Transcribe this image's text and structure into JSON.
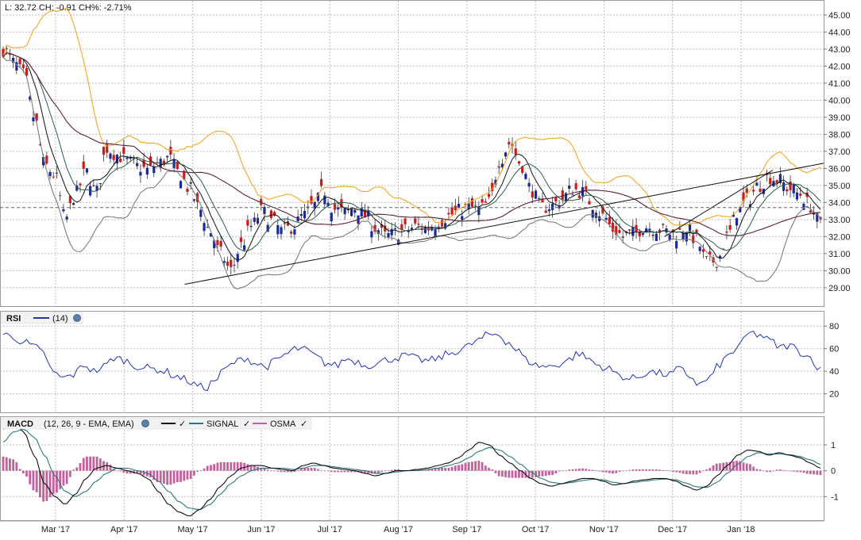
{
  "header": {
    "quote": "L: 32.72 CH: -0.91 CH%: -2.71%"
  },
  "rsi_legend": {
    "name": "RSI",
    "params": "(14)"
  },
  "macd_legend": {
    "name": "MACD",
    "params": "(12, 26, 9 - EMA, EMA)",
    "signal": "SIGNAL",
    "osma": "OSMA"
  },
  "colors": {
    "up": "#1a2a9a",
    "down": "#cc1b1b",
    "bollinger_upper": "#f5a623",
    "bollinger_lower": "#7d7d7d",
    "sma_fast": "#111111",
    "sma_mid": "#2f5d4a",
    "sma_slow": "#5a1f3c",
    "rsi": "#2233bb",
    "macd": "#111111",
    "signal": "#2a7a7a",
    "osma": "#c4609c"
  },
  "chart_data": [
    {
      "type": "candlestick",
      "title": "",
      "y_ticks": [
        "45.00",
        "44.00",
        "43.00",
        "42.00",
        "41.00",
        "40.00",
        "39.00",
        "38.00",
        "37.00",
        "36.00",
        "35.00",
        "34.00",
        "33.00",
        "32.00",
        "31.00",
        "30.00",
        "29.00"
      ],
      "ylim": [
        28.2,
        45.6
      ],
      "x_ticks": [
        "Mar '17",
        "Apr '17",
        "May '17",
        "Jun '17",
        "Jul '17",
        "Aug '17",
        "Sep '17",
        "Oct '17",
        "Nov '17",
        "Dec '17",
        "Jan '18"
      ],
      "last": 32.72,
      "last_line": 33.7,
      "trendlines": [
        {
          "from": [
            "May '17",
            29.2
          ],
          "to": [
            "Feb '18",
            36.3
          ]
        },
        {
          "from": [
            "Dec '17",
            32.0
          ],
          "to": [
            "Jan '18",
            35.9
          ]
        }
      ],
      "close_path": [
        43.0,
        42.2,
        41.5,
        39.0,
        36.2,
        35.6,
        33.0,
        34.5,
        35.8,
        34.6,
        37.2,
        36.8,
        36.4,
        36.1,
        35.9,
        36.3,
        36.6,
        35.7,
        34.8,
        33.6,
        32.3,
        31.0,
        30.0,
        31.5,
        32.6,
        33.5,
        32.9,
        32.3,
        32.6,
        33.2,
        33.8,
        34.7,
        33.6,
        33.4,
        33.7,
        33.2,
        32.5,
        32.0,
        32.2,
        32.4,
        32.6,
        32.5,
        32.8,
        33.2,
        33.5,
        33.7,
        33.6,
        34.0,
        36.5,
        37.5,
        36.3,
        34.8,
        33.7,
        33.8,
        34.2,
        34.8,
        34.6,
        33.9,
        33.2,
        32.4,
        32.0,
        32.2,
        32.6,
        32.5,
        32.3,
        32.1,
        32.5,
        31.8,
        30.5,
        30.6,
        32.0,
        33.5,
        34.2,
        35.0,
        35.5,
        35.3,
        34.8,
        34.5,
        33.8,
        32.7
      ]
    },
    {
      "type": "line",
      "name": "RSI (14)",
      "y_ticks": [
        80,
        60,
        40,
        20
      ],
      "ylim": [
        5,
        90
      ],
      "values_path": [
        73,
        70,
        66,
        62,
        56,
        38,
        34,
        37,
        46,
        40,
        44,
        52,
        50,
        45,
        43,
        42,
        40,
        36,
        33,
        28,
        25,
        32,
        42,
        48,
        52,
        47,
        44,
        49,
        55,
        60,
        59,
        53,
        47,
        45,
        51,
        49,
        45,
        47,
        50,
        52,
        54,
        51,
        49,
        51,
        55,
        58,
        62,
        67,
        72,
        73,
        66,
        58,
        49,
        45,
        44,
        46,
        50,
        56,
        51,
        45,
        42,
        37,
        33,
        35,
        40,
        38,
        37,
        42,
        36,
        28,
        34,
        46,
        55,
        63,
        74,
        72,
        67,
        61,
        63,
        57,
        52,
        41
      ]
    },
    {
      "type": "bar+line",
      "name": "MACD (12, 26, 9 - EMA, EMA)",
      "y_ticks": [
        "1",
        "0",
        "-1"
      ],
      "ylim": [
        -1.85,
        1.95
      ],
      "macd_path": [
        1.6,
        1.9,
        1.5,
        0.6,
        -0.5,
        -1.0,
        -1.3,
        -0.9,
        -0.3,
        0.1,
        0.2,
        0.1,
        0.0,
        -0.1,
        -0.3,
        -0.8,
        -1.3,
        -1.6,
        -1.75,
        -1.5,
        -1.1,
        -0.6,
        -0.2,
        0.1,
        0.2,
        0.2,
        0.1,
        0.05,
        0.0,
        0.2,
        0.3,
        0.2,
        0.1,
        0.05,
        0.0,
        -0.1,
        -0.2,
        -0.1,
        0.0,
        0.0,
        0.05,
        0.1,
        0.2,
        0.3,
        0.5,
        0.8,
        1.1,
        1.0,
        0.6,
        0.3,
        0.0,
        -0.3,
        -0.5,
        -0.6,
        -0.5,
        -0.4,
        -0.3,
        -0.3,
        -0.4,
        -0.55,
        -0.5,
        -0.4,
        -0.35,
        -0.3,
        -0.3,
        -0.4,
        -0.6,
        -0.75,
        -0.6,
        -0.2,
        0.2,
        0.6,
        0.8,
        0.75,
        0.6,
        0.7,
        0.6,
        0.5,
        0.3,
        0.1
      ],
      "signal_path": [
        1.1,
        1.5,
        1.6,
        1.3,
        0.6,
        -0.2,
        -0.8,
        -1.0,
        -0.8,
        -0.4,
        -0.1,
        0.1,
        0.1,
        0.0,
        -0.1,
        -0.4,
        -0.8,
        -1.2,
        -1.45,
        -1.5,
        -1.3,
        -0.9,
        -0.5,
        -0.2,
        0.0,
        0.1,
        0.1,
        0.1,
        0.05,
        0.1,
        0.2,
        0.2,
        0.15,
        0.1,
        0.05,
        0.0,
        -0.1,
        -0.1,
        -0.05,
        0.0,
        0.0,
        0.05,
        0.1,
        0.2,
        0.3,
        0.5,
        0.75,
        0.9,
        0.8,
        0.55,
        0.25,
        -0.05,
        -0.3,
        -0.45,
        -0.5,
        -0.45,
        -0.38,
        -0.33,
        -0.35,
        -0.45,
        -0.5,
        -0.45,
        -0.4,
        -0.35,
        -0.32,
        -0.35,
        -0.48,
        -0.62,
        -0.65,
        -0.45,
        -0.1,
        0.25,
        0.55,
        0.7,
        0.65,
        0.65,
        0.62,
        0.55,
        0.42,
        0.25
      ]
    }
  ]
}
